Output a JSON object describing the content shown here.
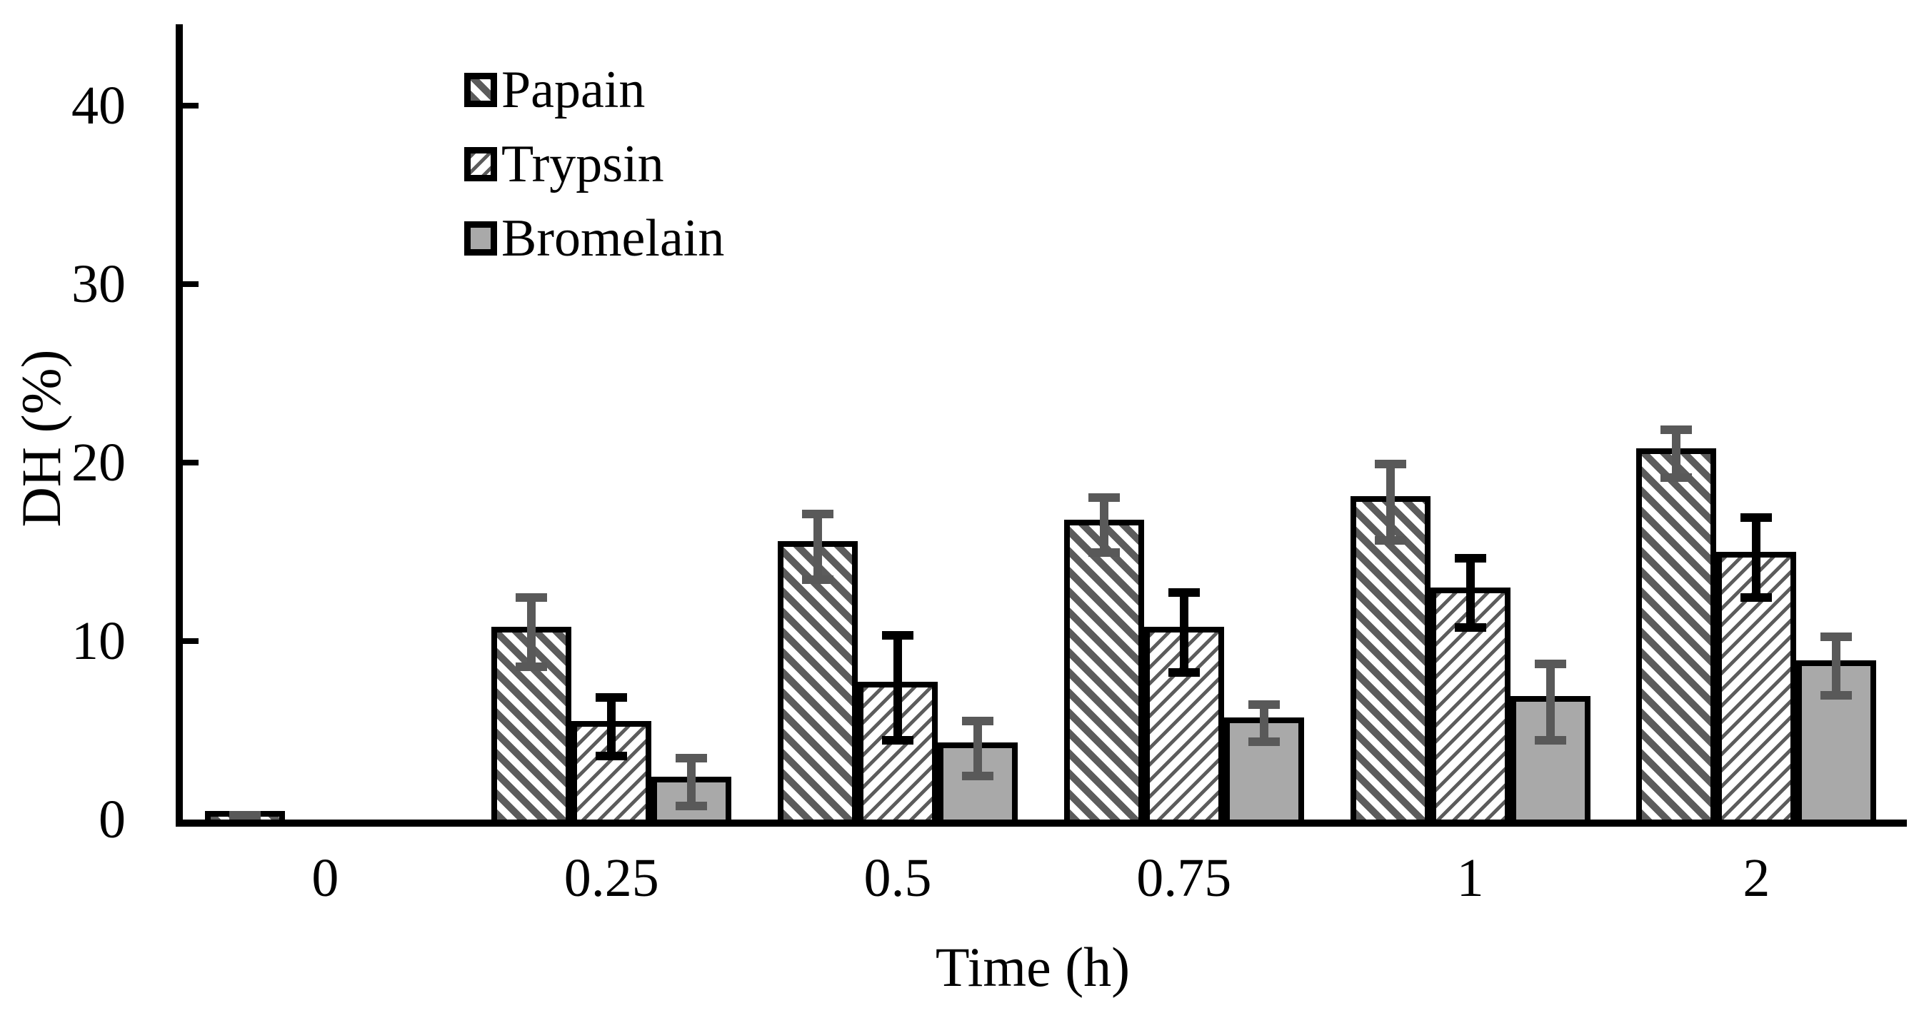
{
  "figure_type": "scientific-bar-chart",
  "chart_data": {
    "type": "bar",
    "title": "",
    "xlabel": "Time (h)",
    "ylabel": "DH (%)",
    "categories": [
      "0",
      "0.25",
      "0.5",
      "0.75",
      "1",
      "2"
    ],
    "yticks": [
      0,
      10,
      20,
      30,
      40
    ],
    "ylim": [
      0,
      44.5
    ],
    "grid": "off",
    "legend_position": "top-left-inside",
    "series": [
      {
        "name": "Papain",
        "pattern": "dark-diagonal-hatch",
        "values": [
          0.15,
          10.5,
          15.3,
          16.5,
          17.8,
          20.5
        ],
        "errors": [
          0.25,
          2.1,
          2.0,
          1.7,
          2.3,
          1.5
        ],
        "error_color": "#595959"
      },
      {
        "name": "Trypsin",
        "pattern": "light-diagonal-hatch",
        "values": [
          0,
          5.2,
          7.4,
          10.5,
          12.7,
          14.7
        ],
        "errors": [
          0,
          1.8,
          3.1,
          2.4,
          2.1,
          2.4
        ],
        "error_color": "#000000"
      },
      {
        "name": "Bromelain",
        "pattern": "solid-gray",
        "values": [
          0,
          2.1,
          4.0,
          5.4,
          6.6,
          8.6
        ],
        "errors": [
          0,
          1.5,
          1.7,
          1.2,
          2.3,
          1.8
        ],
        "error_color": "#595959"
      }
    ],
    "colors": {
      "hatch_stroke": "#5c5c5c",
      "bromelain_fill": "#a9a9a9",
      "bar_border": "#000000",
      "axis": "#000000"
    }
  }
}
